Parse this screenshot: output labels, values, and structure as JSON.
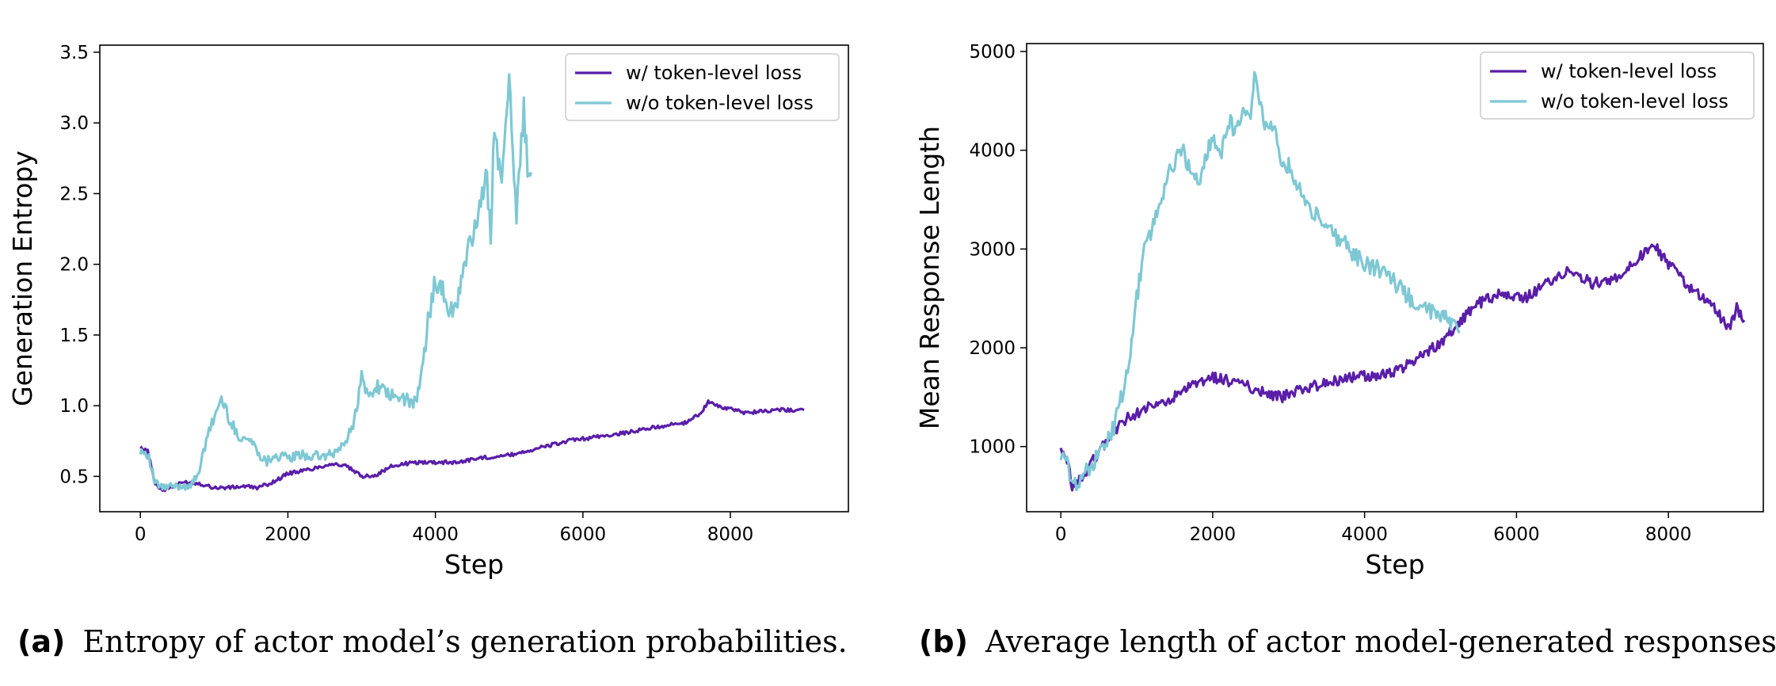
{
  "colors": {
    "w_token": "#5a1ea8",
    "wo_token": "#7ec8d4"
  },
  "captions": [
    {
      "tag": "(a)",
      "text": "Entropy of actor model’s generation probabilities."
    },
    {
      "tag": "(b)",
      "text": "Average length of actor model-generated responses"
    }
  ],
  "chart_data": [
    {
      "type": "line",
      "title": "",
      "xlabel": "Step",
      "ylabel": "Generation Entropy",
      "xlim": [
        -550,
        9600
      ],
      "ylim": [
        0.25,
        3.55
      ],
      "xticks": [
        0,
        2000,
        4000,
        6000,
        8000
      ],
      "yticks": [
        0.5,
        1.0,
        1.5,
        2.0,
        2.5,
        3.0,
        3.5
      ],
      "ytick_labels": [
        "0.5",
        "1.0",
        "1.5",
        "2.0",
        "2.5",
        "3.0",
        "3.5"
      ],
      "grid": false,
      "legend_position": "top-right",
      "series": [
        {
          "name": "w/ token-level loss",
          "x": [
            0,
            100,
            200,
            300,
            400,
            600,
            800,
            1000,
            1200,
            1400,
            1600,
            1800,
            2000,
            2300,
            2600,
            2800,
            3000,
            3200,
            3400,
            3600,
            3800,
            4000,
            4300,
            4600,
            5000,
            5400,
            5800,
            6200,
            6600,
            7000,
            7400,
            7600,
            7700,
            7800,
            8200,
            8600,
            9000
          ],
          "y": [
            0.7,
            0.68,
            0.45,
            0.4,
            0.42,
            0.46,
            0.45,
            0.42,
            0.42,
            0.43,
            0.42,
            0.46,
            0.52,
            0.55,
            0.59,
            0.57,
            0.5,
            0.51,
            0.57,
            0.59,
            0.6,
            0.6,
            0.6,
            0.63,
            0.65,
            0.7,
            0.75,
            0.78,
            0.81,
            0.85,
            0.88,
            0.95,
            1.03,
            1.0,
            0.95,
            0.97,
            0.97
          ]
        },
        {
          "name": "w/o token-level loss",
          "x": [
            0,
            100,
            200,
            300,
            500,
            700,
            800,
            950,
            1100,
            1150,
            1300,
            1500,
            1700,
            1800,
            2000,
            2200,
            2400,
            2600,
            2800,
            2900,
            3000,
            3100,
            3200,
            3300,
            3450,
            3600,
            3700,
            3800,
            3900,
            4000,
            4100,
            4200,
            4300,
            4400,
            4500,
            4600,
            4700,
            4750,
            4800,
            4900,
            5000,
            5050,
            5100,
            5200,
            5250,
            5300
          ],
          "y": [
            0.69,
            0.66,
            0.45,
            0.42,
            0.43,
            0.44,
            0.55,
            0.85,
            1.05,
            0.98,
            0.8,
            0.75,
            0.6,
            0.65,
            0.63,
            0.65,
            0.64,
            0.65,
            0.75,
            0.9,
            1.2,
            1.05,
            1.15,
            1.1,
            1.05,
            1.05,
            1.0,
            1.15,
            1.6,
            1.9,
            1.8,
            1.65,
            1.75,
            2.0,
            2.2,
            2.4,
            2.6,
            2.2,
            3.05,
            2.5,
            3.4,
            2.8,
            2.35,
            3.1,
            2.7,
            2.65
          ]
        }
      ]
    },
    {
      "type": "line",
      "title": "",
      "xlabel": "Step",
      "ylabel": "Mean Response Length",
      "xlim": [
        -450,
        9250
      ],
      "ylim": [
        340,
        5080
      ],
      "xticks": [
        0,
        2000,
        4000,
        6000,
        8000
      ],
      "yticks": [
        1000,
        2000,
        3000,
        4000,
        5000
      ],
      "ytick_labels": [
        "1000",
        "2000",
        "3000",
        "4000",
        "5000"
      ],
      "grid": false,
      "legend_position": "top-right",
      "series": [
        {
          "name": "w/ token-level loss",
          "x": [
            0,
            100,
            150,
            300,
            500,
            700,
            900,
            1100,
            1400,
            1700,
            2000,
            2300,
            2600,
            2900,
            3200,
            3500,
            3800,
            4100,
            4400,
            4700,
            5000,
            5300,
            5500,
            5800,
            6100,
            6400,
            6700,
            7000,
            7300,
            7600,
            7800,
            8000,
            8300,
            8600,
            8800,
            8900,
            9000
          ],
          "y": [
            950,
            800,
            580,
            700,
            950,
            1150,
            1300,
            1380,
            1450,
            1600,
            1700,
            1650,
            1570,
            1500,
            1580,
            1650,
            1700,
            1720,
            1750,
            1900,
            2050,
            2300,
            2450,
            2550,
            2500,
            2650,
            2800,
            2650,
            2700,
            2900,
            3050,
            2850,
            2600,
            2400,
            2200,
            2400,
            2280
          ]
        },
        {
          "name": "w/o token-level loss",
          "x": [
            0,
            100,
            150,
            300,
            500,
            700,
            900,
            1000,
            1100,
            1200,
            1300,
            1400,
            1500,
            1600,
            1700,
            1800,
            1900,
            2000,
            2100,
            2200,
            2300,
            2400,
            2500,
            2550,
            2600,
            2700,
            2800,
            2900,
            3000,
            3200,
            3400,
            3600,
            3800,
            4000,
            4200,
            4400,
            4600,
            4800,
            5000,
            5100,
            5200,
            5250
          ],
          "y": [
            920,
            800,
            590,
            720,
            900,
            1200,
            1800,
            2500,
            3000,
            3200,
            3450,
            3700,
            3900,
            4000,
            3800,
            3650,
            3900,
            4150,
            3950,
            4300,
            4200,
            4450,
            4300,
            4850,
            4600,
            4200,
            4300,
            3900,
            3850,
            3500,
            3300,
            3150,
            3000,
            2850,
            2800,
            2650,
            2500,
            2400,
            2350,
            2250,
            2200,
            2150
          ]
        }
      ]
    }
  ]
}
